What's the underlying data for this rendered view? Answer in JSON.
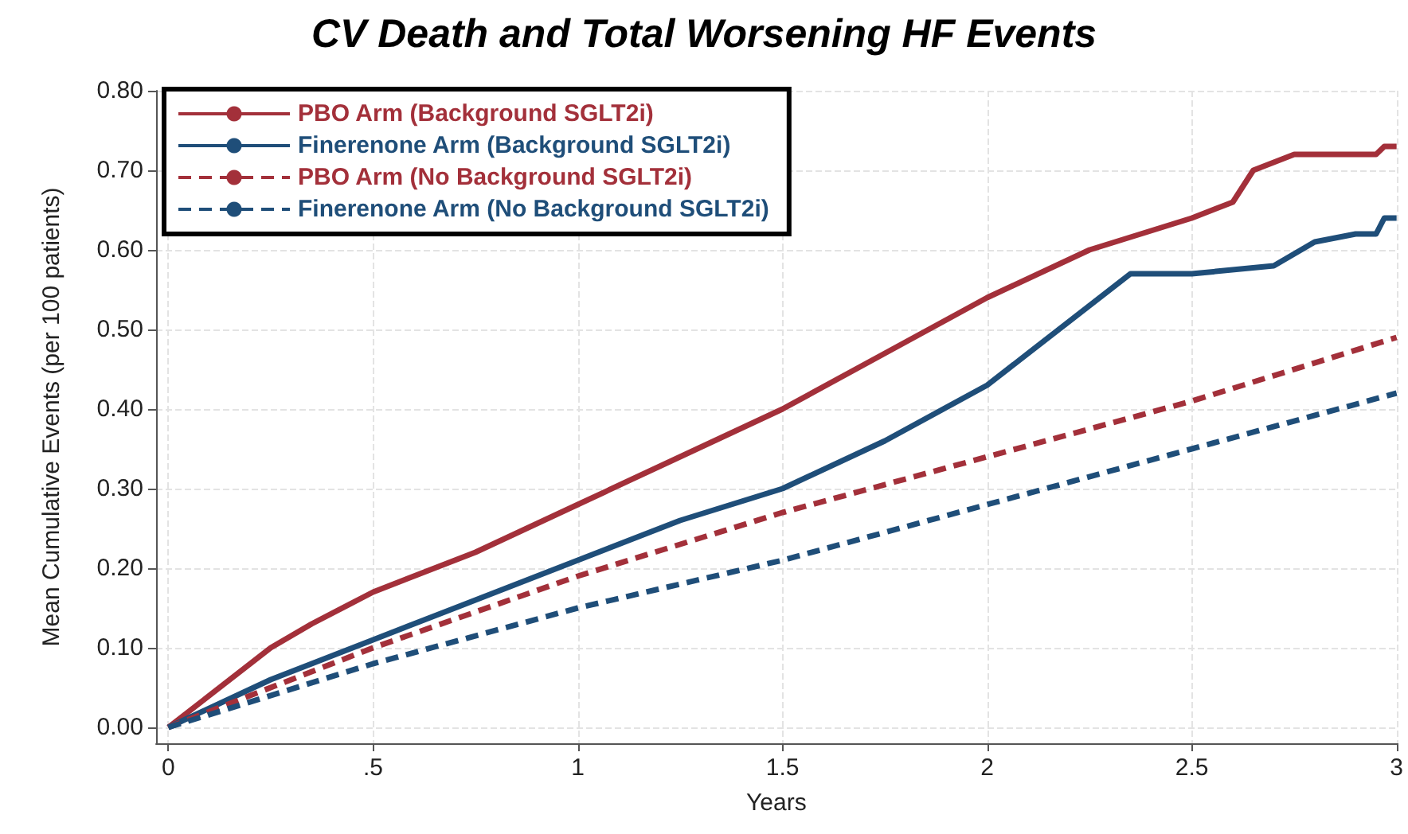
{
  "chart_data": {
    "type": "line",
    "title": "CV Death and Total Worsening HF Events",
    "xlabel": "Years",
    "ylabel": "Mean Cumulative Events (per 100 patients)",
    "xlim": [
      -0.03,
      3
    ],
    "ylim": [
      -0.02,
      0.8
    ],
    "xticks": [
      0,
      {
        "value": 0.5,
        "label": ".5"
      },
      1,
      1.5,
      2,
      2.5,
      3
    ],
    "yticks": [
      {
        "value": 0,
        "label": "0.00"
      },
      {
        "value": 0.1,
        "label": "0.10"
      },
      {
        "value": 0.2,
        "label": "0.20"
      },
      {
        "value": 0.3,
        "label": "0.30"
      },
      {
        "value": 0.4,
        "label": "0.40"
      },
      {
        "value": 0.5,
        "label": "0.50"
      },
      {
        "value": 0.6,
        "label": "0.60"
      },
      {
        "value": 0.7,
        "label": "0.70"
      },
      {
        "value": 0.8,
        "label": "0.80"
      }
    ],
    "grid": true,
    "legend": "top left",
    "marker": "none",
    "series": [
      {
        "name": "PBO Arm (Background SGLT2i)",
        "color": "#a3303a",
        "line_style": "solid",
        "x": [
          0,
          0.1,
          0.25,
          0.35,
          0.5,
          0.75,
          1,
          1.25,
          1.5,
          1.75,
          2,
          2.25,
          2.5,
          2.6,
          2.65,
          2.75,
          2.95,
          2.97,
          3
        ],
        "values": [
          0,
          0.04,
          0.1,
          0.13,
          0.17,
          0.22,
          0.28,
          0.34,
          0.4,
          0.47,
          0.54,
          0.6,
          0.64,
          0.66,
          0.7,
          0.72,
          0.72,
          0.73,
          0.73
        ]
      },
      {
        "name": "Finerenone Arm (Background SGLT2i)",
        "color": "#1f4e79",
        "line_style": "solid",
        "x": [
          0,
          0.25,
          0.5,
          0.75,
          1,
          1.25,
          1.5,
          1.75,
          2,
          2.1,
          2.25,
          2.35,
          2.5,
          2.7,
          2.8,
          2.9,
          2.95,
          2.97,
          3
        ],
        "values": [
          0,
          0.06,
          0.11,
          0.16,
          0.21,
          0.26,
          0.3,
          0.36,
          0.43,
          0.47,
          0.53,
          0.57,
          0.57,
          0.58,
          0.61,
          0.62,
          0.62,
          0.64,
          0.64
        ]
      },
      {
        "name": "PBO Arm (No Background SGLT2i)",
        "color": "#a3303a",
        "line_style": "dashed",
        "x": [
          0,
          0.5,
          1,
          1.5,
          2,
          2.5,
          3
        ],
        "values": [
          0,
          0.1,
          0.19,
          0.27,
          0.34,
          0.41,
          0.49
        ]
      },
      {
        "name": "Finerenone Arm (No Background SGLT2i)",
        "color": "#1f4e79",
        "line_style": "dashed",
        "x": [
          0,
          0.5,
          1,
          1.5,
          2,
          2.5,
          3
        ],
        "values": [
          0,
          0.08,
          0.15,
          0.21,
          0.28,
          0.35,
          0.42
        ]
      }
    ]
  }
}
